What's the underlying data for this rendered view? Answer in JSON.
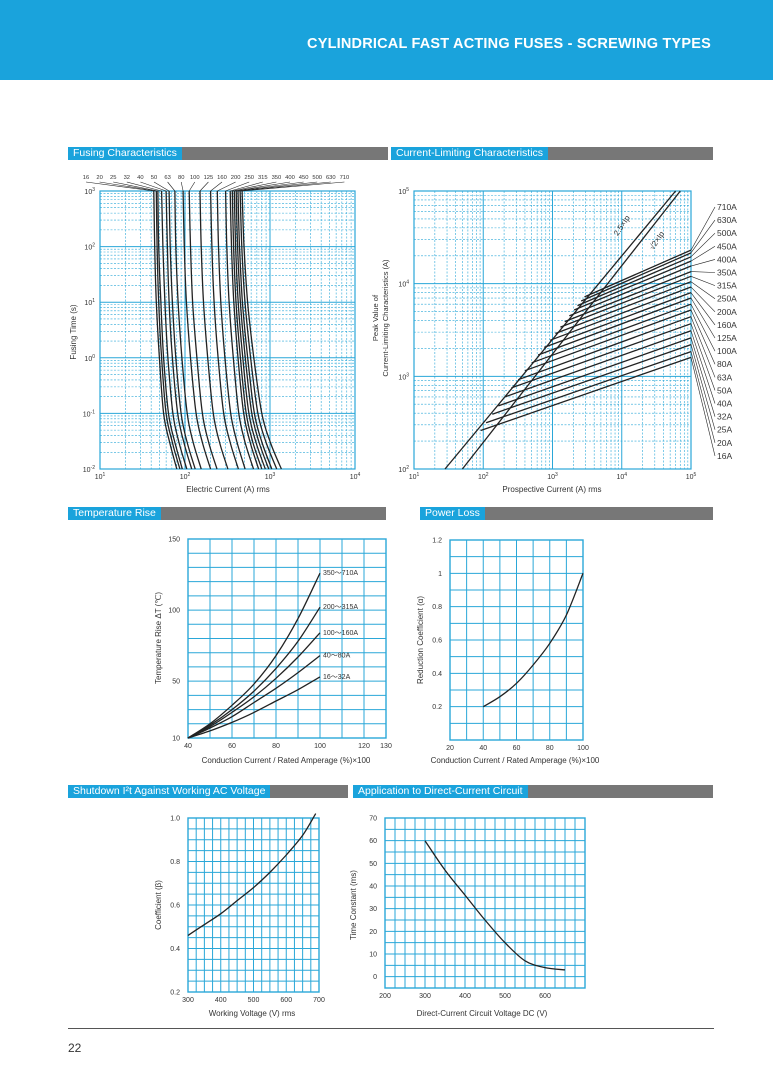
{
  "header": {
    "title": "CYLINDRICAL FAST ACTING FUSES - SCREWING TYPES"
  },
  "page_number": "22",
  "sections": {
    "fusing": "Fusing Characteristics",
    "current_limiting": "Current-Limiting Characteristics",
    "temperature": "Temperature Rise",
    "power_loss": "Power Loss",
    "shutdown": "Shutdown I²t Against Working AC Voltage",
    "dc": "Application to Direct-Current Circuit"
  },
  "colors": {
    "accent": "#1aa3dc",
    "section_bar": "#777777",
    "grid": "#2aa7d8",
    "curve": "#222222"
  },
  "chart_data": [
    {
      "id": "fusing",
      "type": "line",
      "xlabel": "Electric Current (A) rms",
      "ylabel": "Fusing Time (s)",
      "x_scale": "log",
      "y_scale": "log",
      "xlim": [
        10,
        10000
      ],
      "ylim": [
        0.01,
        1000
      ],
      "x_ticks": [
        {
          "v": 10,
          "b": "10",
          "e": "1"
        },
        {
          "v": 100,
          "b": "10",
          "e": "2"
        },
        {
          "v": 1000,
          "b": "10",
          "e": "3"
        },
        {
          "v": 10000,
          "b": "10",
          "e": "4"
        }
      ],
      "y_ticks": [
        {
          "v": 0.01,
          "b": "10",
          "e": "-2"
        },
        {
          "v": 0.1,
          "b": "10",
          "e": "-1"
        },
        {
          "v": 1,
          "b": "10",
          "e": "0"
        },
        {
          "v": 10,
          "b": "10",
          "e": "1"
        },
        {
          "v": 100,
          "b": "10",
          "e": "2"
        },
        {
          "v": 1000,
          "b": "10",
          "e": "3"
        }
      ],
      "top_labels": [
        "16",
        "20",
        "25",
        "32",
        "40",
        "50",
        "63",
        "80",
        "100",
        "125",
        "160",
        "200",
        "250",
        "315",
        "350",
        "400",
        "450",
        "500",
        "630",
        "710"
      ],
      "series": [
        {
          "name": "16",
          "x": [
            43,
            44,
            46,
            50,
            56,
            66,
            80
          ],
          "y": [
            1000,
            100,
            10,
            1,
            0.1,
            0.03,
            0.01
          ]
        },
        {
          "name": "20",
          "x": [
            46,
            47,
            49,
            53,
            60,
            71,
            87
          ],
          "y": [
            1000,
            100,
            10,
            1,
            0.1,
            0.03,
            0.01
          ]
        },
        {
          "name": "25",
          "x": [
            48,
            49,
            52,
            56,
            64,
            76,
            93
          ],
          "y": [
            1000,
            100,
            10,
            1,
            0.1,
            0.03,
            0.01
          ]
        },
        {
          "name": "32",
          "x": [
            53,
            55,
            58,
            63,
            72,
            85,
            105
          ],
          "y": [
            1000,
            100,
            10,
            1,
            0.1,
            0.03,
            0.01
          ]
        },
        {
          "name": "40",
          "x": [
            60,
            62,
            65,
            71,
            82,
            97,
            120
          ],
          "y": [
            1000,
            100,
            10,
            1,
            0.1,
            0.03,
            0.01
          ]
        },
        {
          "name": "50",
          "x": [
            65,
            67,
            71,
            78,
            90,
            106,
            132
          ],
          "y": [
            1000,
            100,
            10,
            1,
            0.1,
            0.03,
            0.01
          ]
        },
        {
          "name": "63",
          "x": [
            76,
            78,
            83,
            92,
            106,
            125,
            155
          ],
          "y": [
            1000,
            100,
            10,
            1,
            0.1,
            0.03,
            0.01
          ]
        },
        {
          "name": "80",
          "x": [
            95,
            98,
            104,
            116,
            135,
            160,
            200
          ],
          "y": [
            1000,
            100,
            10,
            1,
            0.1,
            0.03,
            0.01
          ]
        },
        {
          "name": "100",
          "x": [
            112,
            116,
            123,
            138,
            160,
            190,
            238
          ],
          "y": [
            1000,
            100,
            10,
            1,
            0.1,
            0.03,
            0.01
          ]
        },
        {
          "name": "125",
          "x": [
            150,
            155,
            165,
            185,
            215,
            255,
            320
          ],
          "y": [
            1000,
            100,
            10,
            1,
            0.1,
            0.03,
            0.01
          ]
        },
        {
          "name": "160",
          "x": [
            200,
            207,
            220,
            245,
            285,
            340,
            425
          ],
          "y": [
            1000,
            100,
            10,
            1,
            0.1,
            0.03,
            0.01
          ]
        },
        {
          "name": "200",
          "x": [
            240,
            248,
            264,
            295,
            345,
            410,
            510
          ],
          "y": [
            1000,
            100,
            10,
            1,
            0.1,
            0.03,
            0.01
          ]
        },
        {
          "name": "250",
          "x": [
            300,
            310,
            330,
            370,
            430,
            510,
            640
          ],
          "y": [
            1000,
            100,
            10,
            1,
            0.1,
            0.03,
            0.01
          ]
        },
        {
          "name": "315",
          "x": [
            340,
            352,
            375,
            420,
            490,
            585,
            735
          ],
          "y": [
            1000,
            100,
            10,
            1,
            0.1,
            0.03,
            0.01
          ]
        },
        {
          "name": "350",
          "x": [
            360,
            373,
            398,
            448,
            525,
            630,
            800
          ],
          "y": [
            1000,
            100,
            10,
            1,
            0.1,
            0.03,
            0.01
          ]
        },
        {
          "name": "400",
          "x": [
            380,
            394,
            422,
            478,
            565,
            685,
            880
          ],
          "y": [
            1000,
            100,
            10,
            1,
            0.1,
            0.03,
            0.01
          ]
        },
        {
          "name": "450",
          "x": [
            400,
            416,
            448,
            512,
            610,
            745,
            965
          ],
          "y": [
            1000,
            100,
            10,
            1,
            0.1,
            0.03,
            0.01
          ]
        },
        {
          "name": "500",
          "x": [
            420,
            438,
            474,
            546,
            655,
            805,
            1050
          ],
          "y": [
            1000,
            100,
            10,
            1,
            0.1,
            0.03,
            0.01
          ]
        },
        {
          "name": "630",
          "x": [
            445,
            466,
            508,
            592,
            720,
            900,
            1200
          ],
          "y": [
            1000,
            100,
            10,
            1,
            0.1,
            0.03,
            0.01
          ]
        },
        {
          "name": "710",
          "x": [
            470,
            495,
            545,
            645,
            800,
            1010,
            1360
          ],
          "y": [
            1000,
            100,
            10,
            1,
            0.1,
            0.03,
            0.01
          ]
        }
      ]
    },
    {
      "id": "current_limiting",
      "type": "line",
      "xlabel": "Prospective Current (A) rms",
      "ylabel": "Peak Value of Current-Limiting Characteristics (A)",
      "x_scale": "log",
      "y_scale": "log",
      "xlim": [
        10,
        100000
      ],
      "ylim": [
        100,
        100000
      ],
      "x_ticks": [
        {
          "v": 10,
          "b": "10",
          "e": "1"
        },
        {
          "v": 100,
          "b": "10",
          "e": "2"
        },
        {
          "v": 1000,
          "b": "10",
          "e": "3"
        },
        {
          "v": 10000,
          "b": "10",
          "e": "4"
        },
        {
          "v": 100000,
          "b": "10",
          "e": "5"
        }
      ],
      "y_ticks": [
        {
          "v": 100,
          "b": "10",
          "e": "2"
        },
        {
          "v": 1000,
          "b": "10",
          "e": "3"
        },
        {
          "v": 10000,
          "b": "10",
          "e": "4"
        },
        {
          "v": 100000,
          "b": "10",
          "e": "5"
        }
      ],
      "guides": [
        {
          "name": "2.5×Ip",
          "x": [
            28,
            60000
          ],
          "y": [
            100,
            100000
          ]
        },
        {
          "name": "√2×Ip",
          "x": [
            50,
            70000
          ],
          "y": [
            100,
            100000
          ]
        }
      ],
      "right_labels": [
        "710A",
        "630A",
        "500A",
        "450A",
        "400A",
        "350A",
        "315A",
        "250A",
        "200A",
        "160A",
        "125A",
        "100A",
        "80A",
        "63A",
        "50A",
        "40A",
        "32A",
        "25A",
        "20A",
        "16A"
      ],
      "series": [
        {
          "name": "710A",
          "x": [
            2900,
            100000
          ],
          "y": [
            7200,
            23000
          ]
        },
        {
          "name": "630A",
          "x": [
            2600,
            100000
          ],
          "y": [
            6500,
            21500
          ]
        },
        {
          "name": "500A",
          "x": [
            2300,
            100000
          ],
          "y": [
            5800,
            19500
          ]
        },
        {
          "name": "450A",
          "x": [
            2050,
            100000
          ],
          "y": [
            5200,
            17500
          ]
        },
        {
          "name": "400A",
          "x": [
            1750,
            100000
          ],
          "y": [
            4500,
            15500
          ]
        },
        {
          "name": "350A",
          "x": [
            1500,
            100000
          ],
          "y": [
            3900,
            13500
          ]
        },
        {
          "name": "315A",
          "x": [
            1300,
            100000
          ],
          "y": [
            3400,
            12000
          ]
        },
        {
          "name": "250A",
          "x": [
            1100,
            100000
          ],
          "y": [
            2900,
            10500
          ]
        },
        {
          "name": "200A",
          "x": [
            920,
            100000
          ],
          "y": [
            2450,
            9200
          ]
        },
        {
          "name": "160A",
          "x": [
            760,
            100000
          ],
          "y": [
            2050,
            8000
          ]
        },
        {
          "name": "125A",
          "x": [
            620,
            100000
          ],
          "y": [
            1700,
            7000
          ]
        },
        {
          "name": "100A",
          "x": [
            500,
            100000
          ],
          "y": [
            1400,
            6000
          ]
        },
        {
          "name": "80A",
          "x": [
            400,
            100000
          ],
          "y": [
            1150,
            5200
          ]
        },
        {
          "name": "63A",
          "x": [
            320,
            100000
          ],
          "y": [
            920,
            4400
          ]
        },
        {
          "name": "50A",
          "x": [
            255,
            100000
          ],
          "y": [
            750,
            3700
          ]
        },
        {
          "name": "40A",
          "x": [
            205,
            100000
          ],
          "y": [
            600,
            3100
          ]
        },
        {
          "name": "32A",
          "x": [
            165,
            100000
          ],
          "y": [
            480,
            2600
          ]
        },
        {
          "name": "25A",
          "x": [
            135,
            100000
          ],
          "y": [
            390,
            2200
          ]
        },
        {
          "name": "20A",
          "x": [
            110,
            100000
          ],
          "y": [
            315,
            1850
          ]
        },
        {
          "name": "16A",
          "x": [
            92,
            100000
          ],
          "y": [
            260,
            1600
          ]
        }
      ]
    },
    {
      "id": "temperature",
      "type": "line",
      "xlabel": "Conduction Current / Rated Amperage (%)×100",
      "ylabel": "Temperature Rise ΔT (℃)",
      "xlim": [
        40,
        130
      ],
      "ylim": [
        10,
        150
      ],
      "x_ticks": [
        40,
        60,
        80,
        100,
        120,
        130
      ],
      "y_ticks": [
        10,
        50,
        100,
        150
      ],
      "series": [
        {
          "name": "350～710A",
          "x": [
            40,
            50,
            60,
            70,
            80,
            90,
            100
          ],
          "y": [
            10,
            20,
            33,
            48,
            68,
            94,
            126
          ]
        },
        {
          "name": "200～315A",
          "x": [
            40,
            50,
            60,
            70,
            80,
            90,
            100
          ],
          "y": [
            10,
            19,
            30,
            43,
            59,
            78,
            102
          ]
        },
        {
          "name": "100～160A",
          "x": [
            40,
            50,
            60,
            70,
            80,
            90,
            100
          ],
          "y": [
            10,
            18,
            28,
            39,
            52,
            67,
            84
          ]
        },
        {
          "name": "40～80A",
          "x": [
            40,
            50,
            60,
            70,
            80,
            90,
            100
          ],
          "y": [
            10,
            17,
            25,
            35,
            45,
            56,
            68
          ]
        },
        {
          "name": "16～32A",
          "x": [
            40,
            50,
            60,
            70,
            80,
            90,
            100
          ],
          "y": [
            10,
            15,
            21,
            28,
            36,
            44,
            53
          ]
        }
      ]
    },
    {
      "id": "power_loss",
      "type": "line",
      "xlabel": "Conduction Current / Rated Amperage (%)×100",
      "ylabel": "Reduction Coefficient (α)",
      "xlim": [
        20,
        100
      ],
      "ylim": [
        0,
        1.2
      ],
      "x_ticks": [
        20,
        40,
        60,
        80,
        100
      ],
      "y_ticks": [
        0.2,
        0.4,
        0.6,
        0.8,
        1,
        1.2
      ],
      "series": [
        {
          "name": "",
          "x": [
            40,
            50,
            60,
            70,
            80,
            90,
            100
          ],
          "y": [
            0.2,
            0.26,
            0.34,
            0.45,
            0.58,
            0.75,
            1.0
          ]
        }
      ]
    },
    {
      "id": "shutdown",
      "type": "line",
      "xlabel": "Working Voltage (V) rms",
      "ylabel": "Coefficient (β)",
      "xlim": [
        300,
        700
      ],
      "ylim": [
        0.2,
        1.0
      ],
      "x_ticks": [
        300,
        400,
        500,
        600,
        700
      ],
      "y_ticks": [
        0.2,
        0.4,
        0.6,
        0.8,
        1.0
      ],
      "series": [
        {
          "name": "",
          "x": [
            300,
            350,
            400,
            450,
            500,
            550,
            600,
            650,
            690
          ],
          "y": [
            0.46,
            0.51,
            0.56,
            0.62,
            0.68,
            0.75,
            0.83,
            0.92,
            1.02
          ]
        }
      ]
    },
    {
      "id": "dc",
      "type": "line",
      "xlabel": "Direct-Current Circuit Voltage DC (V)",
      "ylabel": "Time Constant (ms)",
      "xlim": [
        200,
        700
      ],
      "ylim": [
        -5,
        70
      ],
      "x_ticks": [
        200,
        300,
        400,
        500,
        600
      ],
      "y_ticks": [
        0,
        10,
        20,
        30,
        40,
        50,
        60,
        70
      ],
      "series": [
        {
          "name": "",
          "x": [
            300,
            350,
            400,
            450,
            500,
            550,
            600,
            650
          ],
          "y": [
            60,
            47,
            36,
            25,
            15,
            7,
            4,
            3
          ]
        }
      ]
    }
  ]
}
